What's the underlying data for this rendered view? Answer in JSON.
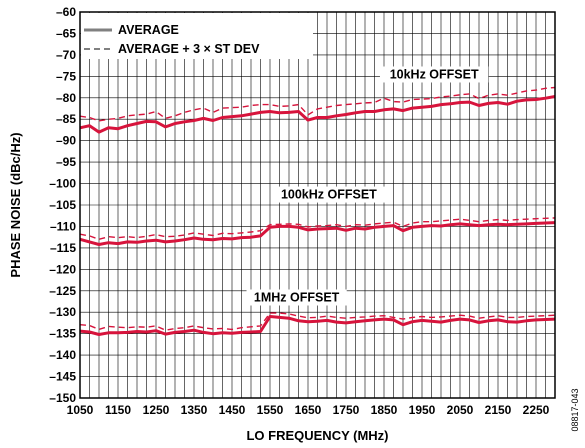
{
  "chart_data": {
    "type": "line",
    "xlabel": "LO FREQUENCY (MHz)",
    "ylabel": "PHASE NOISE (dBc/Hz)",
    "xlim": [
      1050,
      2300
    ],
    "ylim": [
      -150,
      -60
    ],
    "x_ticks": [
      1050,
      1150,
      1250,
      1350,
      1450,
      1550,
      1650,
      1750,
      1850,
      1950,
      2050,
      2150,
      2250
    ],
    "x_tick_labels": [
      "1050",
      "1150",
      "1250",
      "1350",
      "1450",
      "1550",
      "1650",
      "1750",
      "1850",
      "1950",
      "2050",
      "2150",
      "2250"
    ],
    "y_ticks": [
      -150,
      -145,
      -140,
      -135,
      -130,
      -125,
      -120,
      -115,
      -110,
      -105,
      -100,
      -95,
      -90,
      -85,
      -80,
      -75,
      -70,
      -65,
      -60
    ],
    "y_tick_labels": [
      "–150",
      "–145",
      "–140",
      "–135",
      "–130",
      "–125",
      "–120",
      "–115",
      "–110",
      "–105",
      "–100",
      "–95",
      "–90",
      "–85",
      "–80",
      "–75",
      "–70",
      "–65",
      "–60"
    ],
    "grid": true,
    "legend": {
      "placement": "top-left",
      "entries": [
        {
          "label": "AVERAGE",
          "style": "solid-thick"
        },
        {
          "label": "AVERAGE + 3 × ST DEV",
          "style": "dashed"
        }
      ]
    },
    "annotations": [
      "10kHz OFFSET",
      "100kHz OFFSET",
      "1MHz OFFSET"
    ],
    "figure_id": "08817-043",
    "line_color": "#d7143c",
    "x": [
      1050,
      1075,
      1100,
      1125,
      1150,
      1175,
      1200,
      1225,
      1250,
      1275,
      1300,
      1325,
      1350,
      1375,
      1400,
      1425,
      1450,
      1475,
      1500,
      1525,
      1550,
      1575,
      1600,
      1625,
      1650,
      1675,
      1700,
      1725,
      1750,
      1775,
      1800,
      1825,
      1850,
      1875,
      1900,
      1925,
      1950,
      1975,
      2000,
      2025,
      2050,
      2075,
      2100,
      2125,
      2150,
      2175,
      2200,
      2225,
      2250,
      2275,
      2300
    ],
    "series": [
      {
        "group": "10kHz",
        "kind": "average",
        "values": [
          -87,
          -86.5,
          -88,
          -87,
          -87.2,
          -86.5,
          -86,
          -85.5,
          -85.6,
          -86.8,
          -86,
          -85.6,
          -85.3,
          -84.8,
          -85.3,
          -84.6,
          -84.4,
          -84.2,
          -83.8,
          -83.4,
          -83.2,
          -83.5,
          -83.4,
          -83.2,
          -85.2,
          -84.6,
          -84.6,
          -84.2,
          -83.9,
          -83.5,
          -83.2,
          -83.2,
          -82.8,
          -82.6,
          -83,
          -82.4,
          -82.2,
          -82,
          -81.6,
          -81.4,
          -81.1,
          -81,
          -81.8,
          -81.3,
          -81.1,
          -81.5,
          -80.8,
          -80.5,
          -80.4,
          -80.1,
          -79.7
        ]
      },
      {
        "group": "10kHz",
        "kind": "mean_plus_3sd",
        "values": [
          -84.3,
          -84.6,
          -85.4,
          -85,
          -84.8,
          -84.2,
          -84,
          -83.8,
          -83.2,
          -84.8,
          -84.2,
          -83.4,
          -82.8,
          -82.4,
          -83.4,
          -82.4,
          -82.3,
          -82.2,
          -81.8,
          -81.6,
          -81.6,
          -82,
          -81.9,
          -81.6,
          -84,
          -82.6,
          -82.2,
          -81.8,
          -81.6,
          -81.4,
          -81.2,
          -81.1,
          -80.1,
          -80.9,
          -81,
          -80.4,
          -80.3,
          -80.2,
          -79.8,
          -79.6,
          -79.3,
          -79.1,
          -80.2,
          -79.4,
          -79.1,
          -79.4,
          -78.9,
          -78.4,
          -78.2,
          -77.8,
          -77.6
        ]
      },
      {
        "group": "100kHz",
        "kind": "average",
        "values": [
          -113,
          -113.6,
          -114.2,
          -113.8,
          -114,
          -113.6,
          -113.7,
          -113.4,
          -113.2,
          -113.6,
          -113.4,
          -113.1,
          -112.7,
          -113,
          -113.1,
          -112.8,
          -112.9,
          -112.6,
          -112.5,
          -112.2,
          -110.2,
          -110,
          -110,
          -110.2,
          -110.8,
          -110.6,
          -110.5,
          -110.4,
          -110.9,
          -110.4,
          -110.6,
          -110.2,
          -110,
          -109.8,
          -111,
          -110.2,
          -110,
          -109.8,
          -109.9,
          -109.6,
          -109.4,
          -109.6,
          -109.8,
          -109.6,
          -109.5,
          -109.6,
          -109.5,
          -109.4,
          -109.3,
          -109.2,
          -109.1
        ]
      },
      {
        "group": "100kHz",
        "kind": "mean_plus_3sd",
        "values": [
          -111.8,
          -112.2,
          -113,
          -112.4,
          -112.6,
          -112.4,
          -112.6,
          -112.3,
          -111.9,
          -112.4,
          -112.3,
          -112,
          -111.5,
          -111.8,
          -112.1,
          -111.6,
          -111.7,
          -111.5,
          -111.3,
          -111,
          -109.6,
          -109.5,
          -109.4,
          -109.5,
          -110.1,
          -109.9,
          -109.8,
          -109.6,
          -110,
          -109.6,
          -109.7,
          -109.4,
          -109.2,
          -109,
          -110,
          -109.2,
          -108.9,
          -108.9,
          -108.7,
          -108.5,
          -108.3,
          -108.6,
          -108.9,
          -108.6,
          -108.4,
          -108.6,
          -108.4,
          -108.3,
          -108.2,
          -108.1,
          -108
        ]
      },
      {
        "group": "1MHz",
        "kind": "average",
        "values": [
          -134.4,
          -134.6,
          -135.2,
          -134.8,
          -134.8,
          -134.7,
          -134.5,
          -134.6,
          -134.3,
          -135.1,
          -134.7,
          -134.5,
          -134.2,
          -134.7,
          -135,
          -134.8,
          -134.9,
          -134.7,
          -134.6,
          -134.5,
          -131,
          -131.2,
          -131.4,
          -132,
          -132.2,
          -132.1,
          -131.9,
          -132.3,
          -132.5,
          -132.2,
          -132,
          -131.8,
          -131.6,
          -131.8,
          -132.9,
          -132.2,
          -131.9,
          -132.1,
          -132.3,
          -131.9,
          -131.6,
          -131.8,
          -132.4,
          -132,
          -131.8,
          -132.2,
          -132.3,
          -132,
          -131.8,
          -131.7,
          -131.6
        ]
      },
      {
        "group": "1MHz",
        "kind": "mean_plus_3sd",
        "values": [
          -132.9,
          -133.1,
          -134,
          -133.3,
          -133.5,
          -133.6,
          -133.4,
          -133.5,
          -133.2,
          -134.2,
          -133.8,
          -133.6,
          -133.2,
          -133.6,
          -133.9,
          -133.8,
          -134,
          -133.6,
          -133.4,
          -133.2,
          -130.2,
          -130.2,
          -130.4,
          -130.9,
          -131.3,
          -131.2,
          -130.9,
          -131.2,
          -131.4,
          -131.2,
          -131.1,
          -130.9,
          -130.8,
          -131.2,
          -131.6,
          -131.2,
          -131,
          -131.2,
          -131.1,
          -130.9,
          -130.7,
          -130.9,
          -131.4,
          -131.1,
          -130.8,
          -131.2,
          -131.2,
          -131,
          -130.9,
          -130.8,
          -130.7
        ]
      }
    ]
  }
}
